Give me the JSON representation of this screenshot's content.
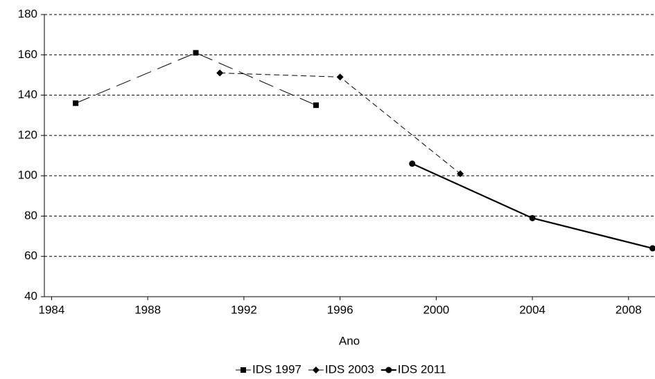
{
  "chart_data": {
    "type": "line",
    "x_label": "Ano",
    "xlim": [
      1983.7,
      2009.1
    ],
    "xticks": [
      1984,
      1988,
      1992,
      1996,
      2000,
      2004,
      2008
    ],
    "ylim": [
      40,
      180
    ],
    "yticks": [
      40,
      60,
      80,
      100,
      120,
      140,
      160,
      180
    ],
    "grid": true,
    "legend": "bottom",
    "series": [
      {
        "name": "IDS 1997",
        "color": "#000000",
        "dash": "long",
        "marker": "square",
        "x": [
          1985,
          1990,
          1995
        ],
        "values": [
          136,
          161,
          135
        ]
      },
      {
        "name": "IDS 2003",
        "color": "#000000",
        "dash": "short",
        "marker": "diamond",
        "x": [
          1991,
          1996,
          2001
        ],
        "values": [
          151,
          149,
          101
        ]
      },
      {
        "name": "IDS 2011",
        "color": "#000000",
        "dash": "solid",
        "marker": "circle",
        "x": [
          1999,
          2004,
          2009
        ],
        "values": [
          106,
          79,
          64
        ]
      }
    ]
  }
}
